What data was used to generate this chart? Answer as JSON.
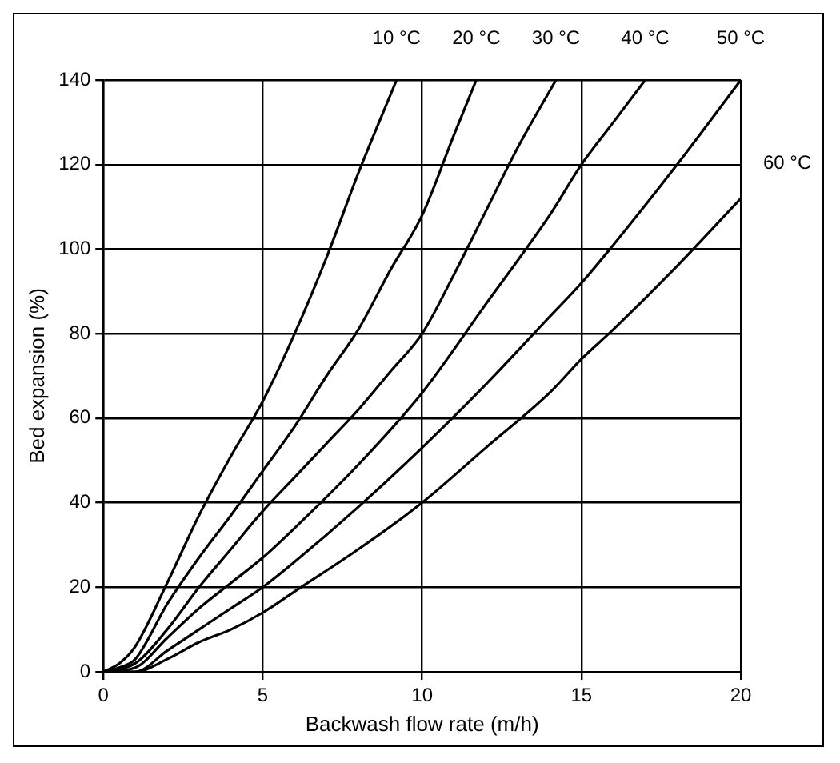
{
  "chart_data": {
    "type": "line",
    "xlabel": "Backwash flow rate (m/h)",
    "ylabel": "Bed expansion (%)",
    "xlim": [
      0,
      20
    ],
    "xticks": [
      0,
      5,
      10,
      15,
      20
    ],
    "ylim": [
      0,
      140
    ],
    "yticks": [
      0,
      20,
      40,
      60,
      80,
      100,
      120,
      140
    ],
    "grid": true,
    "legend": false,
    "marker": "none",
    "line_style": "solid",
    "series": [
      {
        "name": "10 °C",
        "color": "#000000",
        "x": [
          0,
          0.5,
          1,
          2,
          3,
          4,
          5,
          6,
          7,
          8,
          9.2
        ],
        "values": [
          0,
          2,
          6,
          21,
          37,
          51,
          64,
          80,
          98,
          118,
          140
        ]
      },
      {
        "name": "20 °C",
        "color": "#000000",
        "x": [
          0,
          0.5,
          1,
          2,
          3,
          4,
          5,
          6,
          7,
          8,
          9,
          10,
          11,
          11.7
        ],
        "values": [
          0,
          1,
          3,
          16,
          27,
          37,
          47.5,
          58,
          70,
          81,
          95,
          108,
          127,
          140
        ]
      },
      {
        "name": "30 °C",
        "color": "#000000",
        "x": [
          0,
          1,
          2,
          3,
          4,
          5,
          6,
          7,
          8,
          9,
          10,
          11,
          12,
          13,
          14.2
        ],
        "values": [
          0,
          2,
          10,
          20,
          29,
          38,
          46,
          54,
          62,
          71,
          80,
          94,
          109,
          124,
          140
        ]
      },
      {
        "name": "40 °C",
        "color": "#000000",
        "x": [
          0,
          1,
          2,
          3,
          4,
          5,
          6,
          8,
          10,
          12,
          14,
          15,
          16,
          17
        ],
        "values": [
          0,
          1,
          8,
          15,
          21,
          27,
          34,
          49,
          66,
          87,
          108,
          120,
          130,
          140
        ]
      },
      {
        "name": "50 °C",
        "color": "#000000",
        "x": [
          0,
          1,
          2,
          3,
          4,
          5,
          6,
          8,
          10,
          12,
          14,
          15,
          16,
          18,
          20
        ],
        "values": [
          0,
          0,
          5,
          10,
          15,
          20,
          26,
          39,
          53,
          68,
          84,
          92,
          101,
          120,
          140
        ]
      },
      {
        "name": "60 °C",
        "color": "#000000",
        "x": [
          0,
          1,
          2,
          3,
          4,
          5,
          6,
          8,
          10,
          12,
          14,
          15,
          16,
          18,
          20
        ],
        "values": [
          0,
          0,
          3,
          7,
          10,
          14,
          19,
          29,
          40,
          53,
          66,
          74,
          81,
          96,
          112
        ]
      }
    ]
  }
}
